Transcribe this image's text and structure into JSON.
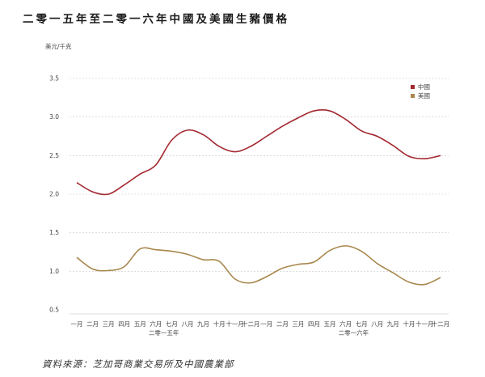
{
  "title": "二零一五年至二零一六年中國及美國生豬價格",
  "source": "資料來源：芝加哥商業交易所及中國農業部",
  "chart_data": {
    "type": "line",
    "ylabel": "美元/千克",
    "ylim": [
      0.5,
      3.5
    ],
    "yticks": [
      "3.5",
      "3.0",
      "2.5",
      "2.0",
      "1.5",
      "1.0",
      "0.5"
    ],
    "grid": true,
    "legend_position": "top-right",
    "categories": [
      "一月",
      "二月",
      "三月",
      "四月",
      "五月",
      "六月",
      "七月",
      "八月",
      "九月",
      "十月",
      "十一月",
      "十二月",
      "一月",
      "二月",
      "三月",
      "四月",
      "五月",
      "六月",
      "七月",
      "八月",
      "九月",
      "十月",
      "十一月",
      "十二月"
    ],
    "year_labels": [
      {
        "text": "二零一五年",
        "start": 5,
        "end": 6
      },
      {
        "text": "二零一六年",
        "start": 17,
        "end": 18
      }
    ],
    "series": [
      {
        "name": "中國",
        "color": "#a3282f",
        "values": [
          2.15,
          2.03,
          2.0,
          2.12,
          2.26,
          2.38,
          2.7,
          2.83,
          2.77,
          2.62,
          2.55,
          2.62,
          2.75,
          2.88,
          2.99,
          3.08,
          3.08,
          2.97,
          2.82,
          2.75,
          2.63,
          2.49,
          2.46,
          2.5
        ]
      },
      {
        "name": "美國",
        "color": "#a8874c",
        "values": [
          1.18,
          1.03,
          1.01,
          1.06,
          1.29,
          1.28,
          1.26,
          1.22,
          1.15,
          1.13,
          0.9,
          0.85,
          0.93,
          1.04,
          1.09,
          1.12,
          1.27,
          1.33,
          1.26,
          1.1,
          0.98,
          0.86,
          0.83,
          0.92
        ]
      }
    ]
  }
}
